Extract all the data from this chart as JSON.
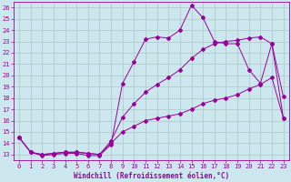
{
  "xlabel": "Windchill (Refroidissement éolien,°C)",
  "bg_color": "#cce8ee",
  "grid_color": "#b0cccc",
  "line_color": "#990099",
  "xlim": [
    -0.5,
    23.5
  ],
  "ylim": [
    12.5,
    26.5
  ],
  "xticks": [
    0,
    1,
    2,
    3,
    4,
    5,
    6,
    7,
    8,
    9,
    10,
    11,
    12,
    13,
    14,
    15,
    16,
    17,
    18,
    19,
    20,
    21,
    22,
    23
  ],
  "yticks": [
    13,
    14,
    15,
    16,
    17,
    18,
    19,
    20,
    21,
    22,
    23,
    24,
    25,
    26
  ],
  "line1_x": [
    0,
    1,
    2,
    3,
    4,
    5,
    6,
    7,
    8,
    9,
    10,
    11,
    12,
    13,
    14,
    15,
    16,
    17,
    18,
    19,
    20,
    21,
    22,
    23
  ],
  "line1_y": [
    14.5,
    13.2,
    12.9,
    13.0,
    13.1,
    13.1,
    12.9,
    12.9,
    13.9,
    19.3,
    21.2,
    23.2,
    23.4,
    23.3,
    24.0,
    26.2,
    25.1,
    23.0,
    22.8,
    22.8,
    20.5,
    19.3,
    22.8,
    18.1
  ],
  "line2_x": [
    0,
    1,
    2,
    3,
    4,
    5,
    6,
    7,
    8,
    9,
    10,
    11,
    12,
    13,
    14,
    15,
    16,
    17,
    18,
    19,
    20,
    21,
    22,
    23
  ],
  "line2_y": [
    14.5,
    13.2,
    13.0,
    13.1,
    13.2,
    13.2,
    13.1,
    13.0,
    14.2,
    16.3,
    17.5,
    18.5,
    19.2,
    19.8,
    20.5,
    21.5,
    22.3,
    22.8,
    23.0,
    23.1,
    23.3,
    23.4,
    22.8,
    16.2
  ],
  "line3_x": [
    0,
    1,
    2,
    3,
    4,
    5,
    6,
    7,
    8,
    9,
    10,
    11,
    12,
    13,
    14,
    15,
    16,
    17,
    18,
    19,
    20,
    21,
    22,
    23
  ],
  "line3_y": [
    14.5,
    13.2,
    13.0,
    13.1,
    13.2,
    13.2,
    13.1,
    13.0,
    14.0,
    15.0,
    15.5,
    16.0,
    16.2,
    16.4,
    16.6,
    17.0,
    17.5,
    17.8,
    18.0,
    18.3,
    18.8,
    19.2,
    19.8,
    16.2
  ],
  "tick_fontsize": 5.0,
  "label_fontsize": 5.5,
  "marker": "D",
  "markersize": 2.0
}
